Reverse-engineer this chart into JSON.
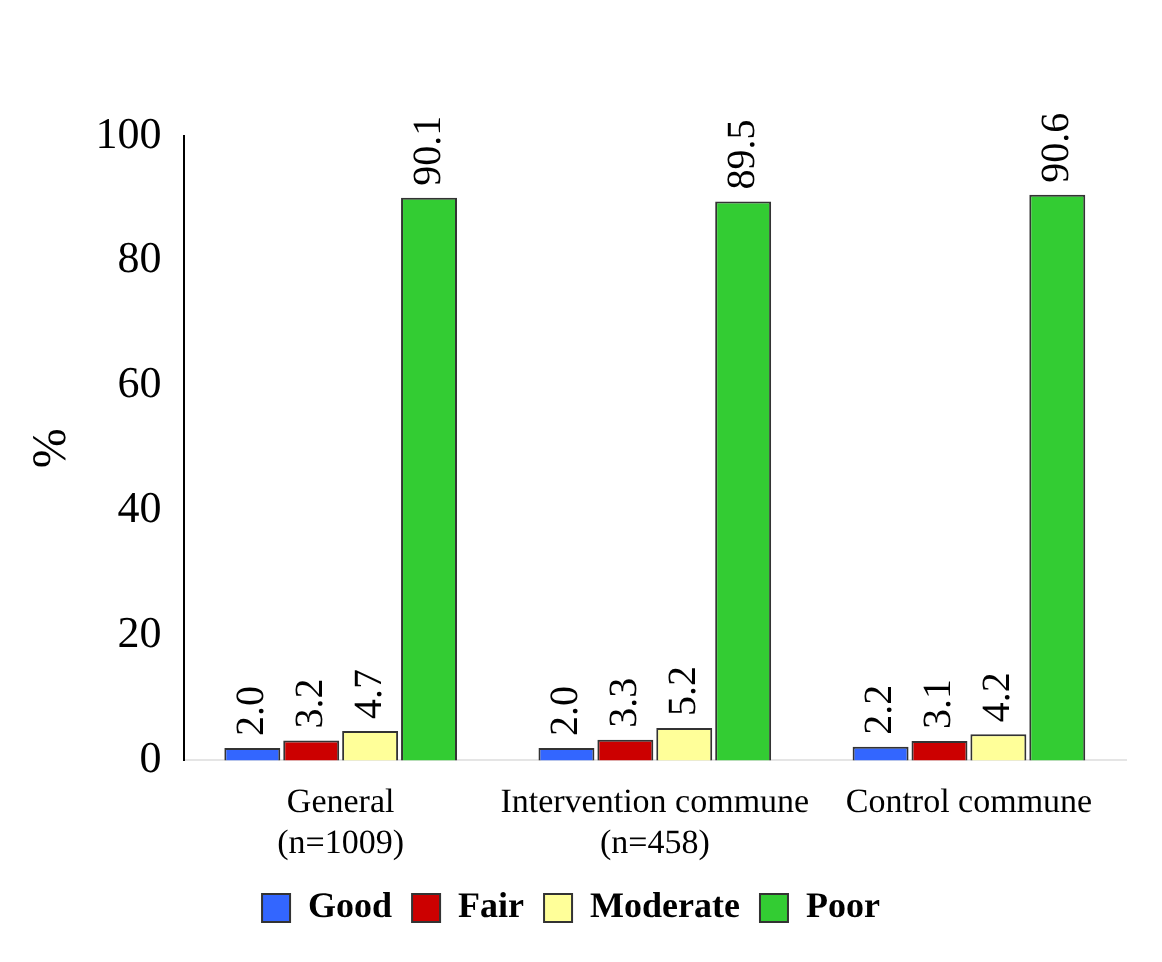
{
  "chart_data": {
    "type": "bar",
    "ylabel": "%",
    "categories": [
      "General (n=1009)",
      "Intervention commune (n=458)",
      "Control commune"
    ],
    "series": [
      {
        "name": "Good",
        "color": "#3366ff",
        "values": [
          2.0,
          2.0,
          2.2
        ],
        "value_labels": [
          "2.0",
          "2.0",
          "2.2"
        ]
      },
      {
        "name": "Fair",
        "color": "#cc0000",
        "values": [
          3.2,
          3.3,
          3.1
        ],
        "value_labels": [
          "3.2",
          "3.3",
          "3.1"
        ]
      },
      {
        "name": "Moderate",
        "color": "#ffff99",
        "values": [
          4.7,
          5.2,
          4.2
        ],
        "value_labels": [
          "4.7",
          "5.2",
          "4.2"
        ]
      },
      {
        "name": "Poor",
        "color": "#33cc33",
        "values": [
          90.1,
          89.5,
          90.6
        ],
        "value_labels": [
          "90.1",
          "89.5",
          "90.6"
        ]
      }
    ],
    "ylim": [
      0,
      100
    ],
    "yticks": [
      0,
      20,
      40,
      60,
      80,
      100
    ],
    "grid": false,
    "legend": "bottom"
  }
}
